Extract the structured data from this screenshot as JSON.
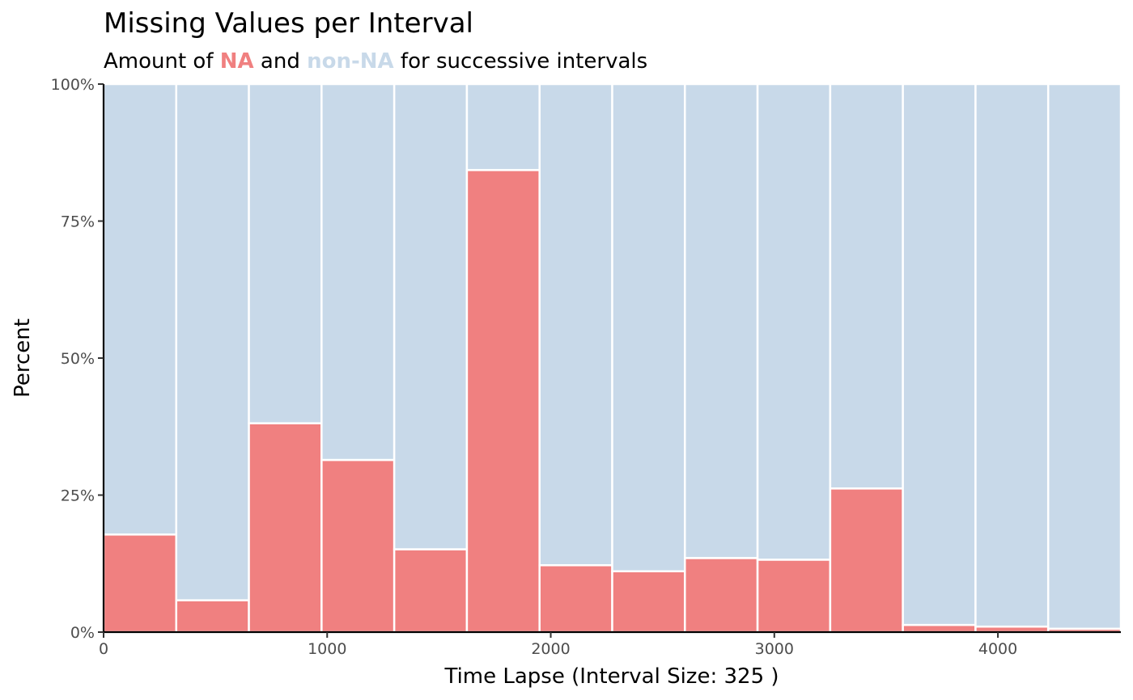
{
  "chart_data": {
    "type": "bar",
    "title": "Missing Values per Interval",
    "subtitle": {
      "prefix": "Amount of ",
      "na_text": "NA",
      "middle": " and ",
      "non_na_text": "non-NA",
      "suffix": " for successive intervals"
    },
    "xlabel": "Time Lapse (Interval Size: 325 )",
    "ylabel": "Percent",
    "interval_size": 325,
    "xlim": [
      0,
      4550
    ],
    "ylim": [
      0,
      100
    ],
    "x_ticks": [
      0,
      1000,
      2000,
      3000,
      4000
    ],
    "x_tick_labels": [
      "0",
      "1000",
      "2000",
      "3000",
      "4000"
    ],
    "y_ticks": [
      0,
      25,
      50,
      75,
      100
    ],
    "y_tick_labels": [
      "0%",
      "25%",
      "50%",
      "75%",
      "100%"
    ],
    "grid": false,
    "stacked": true,
    "colors": {
      "NA": "#F08080",
      "non-NA": "#C8D9E9"
    },
    "intervals": [
      {
        "start": 0,
        "end": 325
      },
      {
        "start": 325,
        "end": 650
      },
      {
        "start": 650,
        "end": 975
      },
      {
        "start": 975,
        "end": 1300
      },
      {
        "start": 1300,
        "end": 1625
      },
      {
        "start": 1625,
        "end": 1950
      },
      {
        "start": 1950,
        "end": 2275
      },
      {
        "start": 2275,
        "end": 2600
      },
      {
        "start": 2600,
        "end": 2925
      },
      {
        "start": 2925,
        "end": 3250
      },
      {
        "start": 3250,
        "end": 3575
      },
      {
        "start": 3575,
        "end": 3900
      },
      {
        "start": 3900,
        "end": 4225
      },
      {
        "start": 4225,
        "end": 4550
      }
    ],
    "series": [
      {
        "name": "NA",
        "values": [
          17.8,
          5.8,
          38.1,
          31.4,
          15.1,
          84.3,
          12.2,
          11.1,
          13.5,
          13.2,
          26.2,
          1.3,
          1.0,
          0.6
        ]
      },
      {
        "name": "non-NA",
        "values": [
          82.2,
          94.2,
          61.9,
          68.6,
          84.9,
          15.7,
          87.8,
          88.9,
          86.5,
          86.8,
          73.8,
          98.7,
          99.0,
          99.4
        ]
      }
    ]
  }
}
